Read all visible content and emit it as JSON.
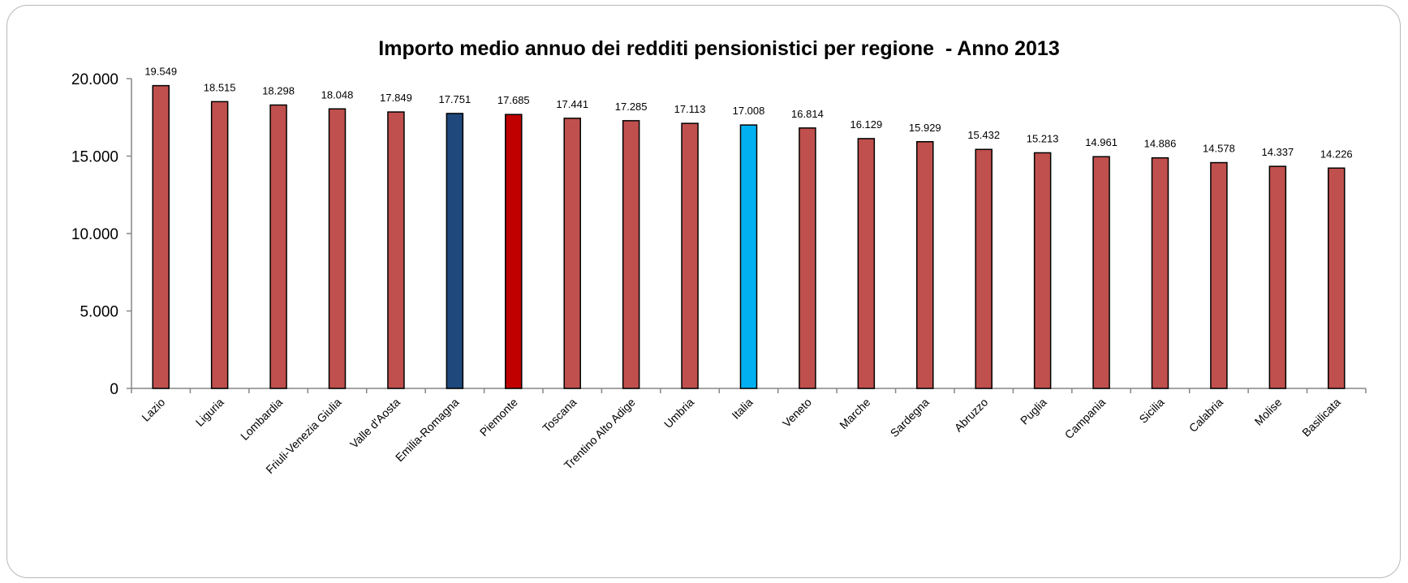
{
  "chart_data": {
    "type": "bar",
    "title": "Importo medio annuo dei redditi pensionistici per regione  - Anno 2013",
    "xlabel": "",
    "ylabel": "",
    "ylim": [
      0,
      20000
    ],
    "ytick_values": [
      0,
      5000,
      10000,
      15000,
      20000
    ],
    "ytick_labels": [
      "0",
      "5.000",
      "10.000",
      "15.000",
      "20.000"
    ],
    "categories": [
      "Lazio",
      "Liguria",
      "Lombardia",
      "Friuli-Venezia Giulia",
      "Valle d'Aosta",
      "Emilia-Romagna",
      "Piemonte",
      "Toscana",
      "Trentino Alto Adige",
      "Umbria",
      "Italia",
      "Veneto",
      "Marche",
      "Sardegna",
      "Abruzzo",
      "Puglia",
      "Campania",
      "Sicilia",
      "Calabria",
      "Molise",
      "Basilicata"
    ],
    "values": [
      19549,
      18515,
      18298,
      18048,
      17849,
      17751,
      17685,
      17441,
      17285,
      17113,
      17008,
      16814,
      16129,
      15929,
      15432,
      15213,
      14961,
      14886,
      14578,
      14337,
      14226
    ],
    "data_labels": [
      "19.549",
      "18.515",
      "18.298",
      "18.048",
      "17.849",
      "17.751",
      "17.685",
      "17.441",
      "17.285",
      "17.113",
      "17.008",
      "16.814",
      "16.129",
      "15.929",
      "15.432",
      "15.213",
      "14.961",
      "14.886",
      "14.578",
      "14.337",
      "14.226"
    ],
    "bar_colors": [
      "#c0504d",
      "#c0504d",
      "#c0504d",
      "#c0504d",
      "#c0504d",
      "#1f497d",
      "#c00000",
      "#c0504d",
      "#c0504d",
      "#c0504d",
      "#00b0f0",
      "#c0504d",
      "#c0504d",
      "#c0504d",
      "#c0504d",
      "#c0504d",
      "#c0504d",
      "#c0504d",
      "#c0504d",
      "#c0504d",
      "#c0504d"
    ],
    "legend": "none",
    "grid": false
  }
}
